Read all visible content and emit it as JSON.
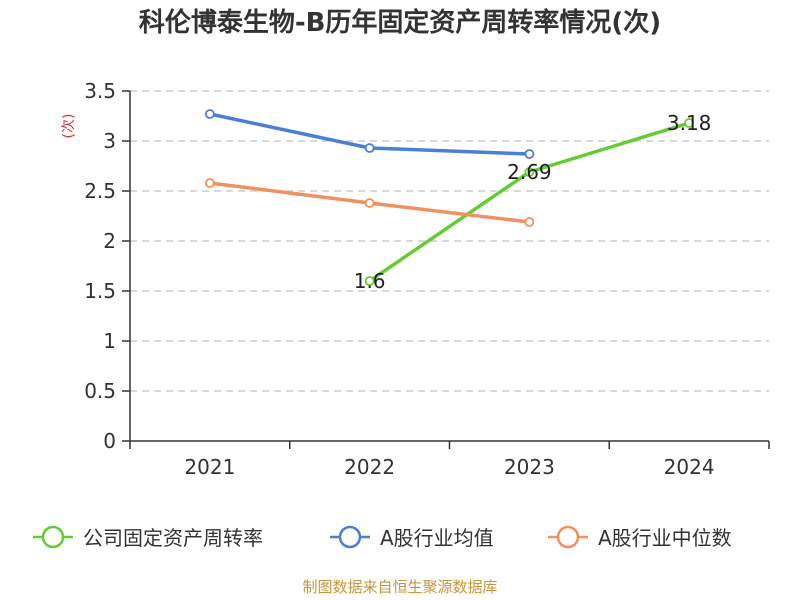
{
  "chart_data": {
    "type": "line",
    "title": "科伦博泰生物-B历年固定资产周转率情况(次)",
    "ylabel": "(次)",
    "xlabel": "",
    "categories": [
      "2021",
      "2022",
      "2023",
      "2024"
    ],
    "ylim": [
      0,
      3.5
    ],
    "yticks": [
      0,
      0.5,
      1,
      1.5,
      2,
      2.5,
      3,
      3.5
    ],
    "ytick_labels": [
      "0",
      "0.5",
      "1",
      "1.5",
      "2",
      "2.5",
      "3",
      "3.5"
    ],
    "grid": true,
    "legend_position": "bottom",
    "series": [
      {
        "name": "公司固定资产周转率",
        "color": "#66cc33",
        "values": [
          null,
          1.6,
          2.69,
          3.18
        ],
        "data_labels": [
          null,
          "1.6",
          "2.69",
          "3.18"
        ]
      },
      {
        "name": "A股行业均值",
        "color": "#4a7fd9",
        "values": [
          3.27,
          2.93,
          2.87,
          null
        ]
      },
      {
        "name": "A股行业中位数",
        "color": "#f5905e",
        "values": [
          2.58,
          2.38,
          2.19,
          null
        ]
      }
    ],
    "source": "制图数据来自恒生聚源数据库",
    "colors": {
      "axis": "#333333",
      "grid": "#cccccc",
      "title": "#333333",
      "unit": "#e03030",
      "source": "#c8963c"
    }
  }
}
